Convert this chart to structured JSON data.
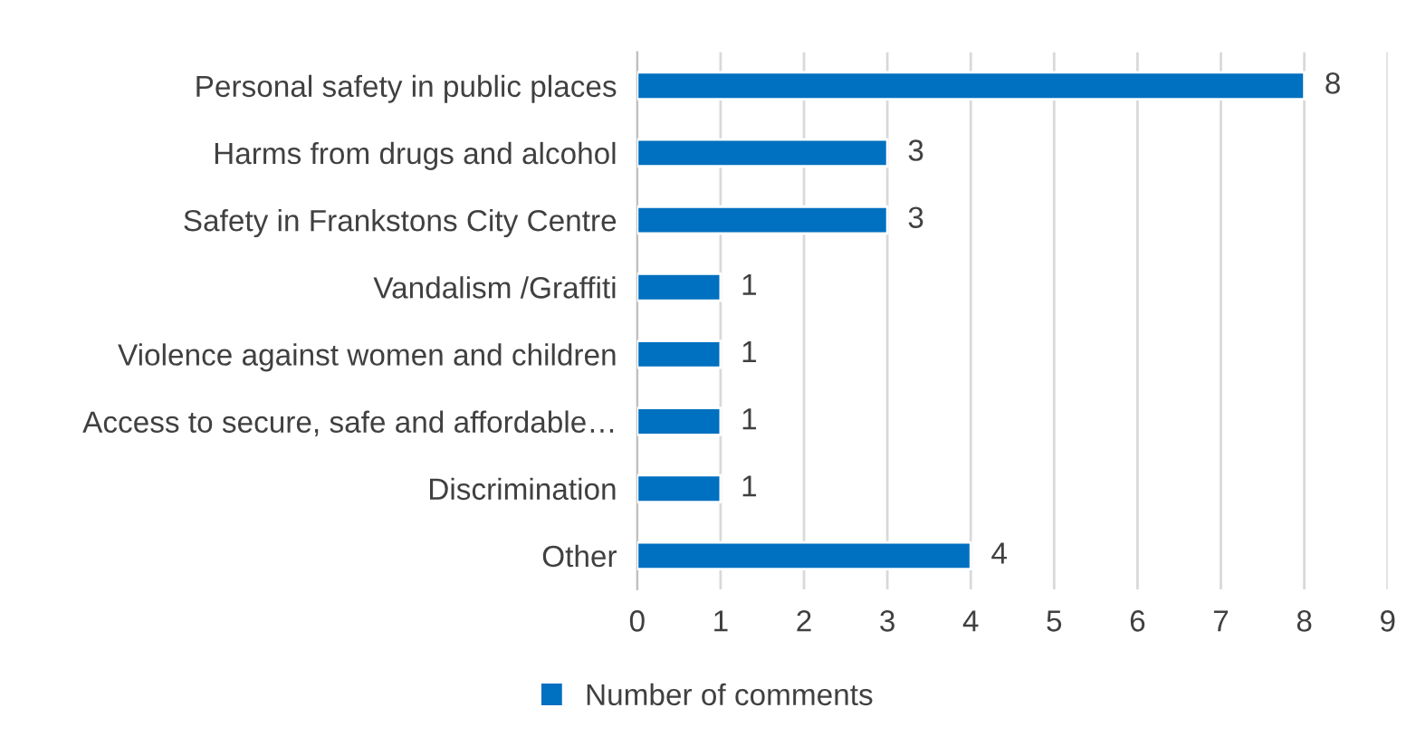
{
  "chart_data": {
    "type": "bar",
    "orientation": "horizontal",
    "categories": [
      "Personal safety in public places",
      "Harms from drugs and alcohol",
      "Safety in Frankstons City Centre",
      "Vandalism /Graffiti",
      "Violence against women and children",
      "Access to secure, safe and affordable…",
      "Discrimination",
      "Other"
    ],
    "series": [
      {
        "name": "Number of comments",
        "color": "#0070c0",
        "values": [
          8,
          3,
          3,
          1,
          1,
          1,
          1,
          4
        ]
      }
    ],
    "xlim": [
      0,
      9
    ],
    "xticks": [
      0,
      1,
      2,
      3,
      4,
      5,
      6,
      7,
      8,
      9
    ],
    "grid": "x",
    "legend": "bottom",
    "data_labels": true
  }
}
